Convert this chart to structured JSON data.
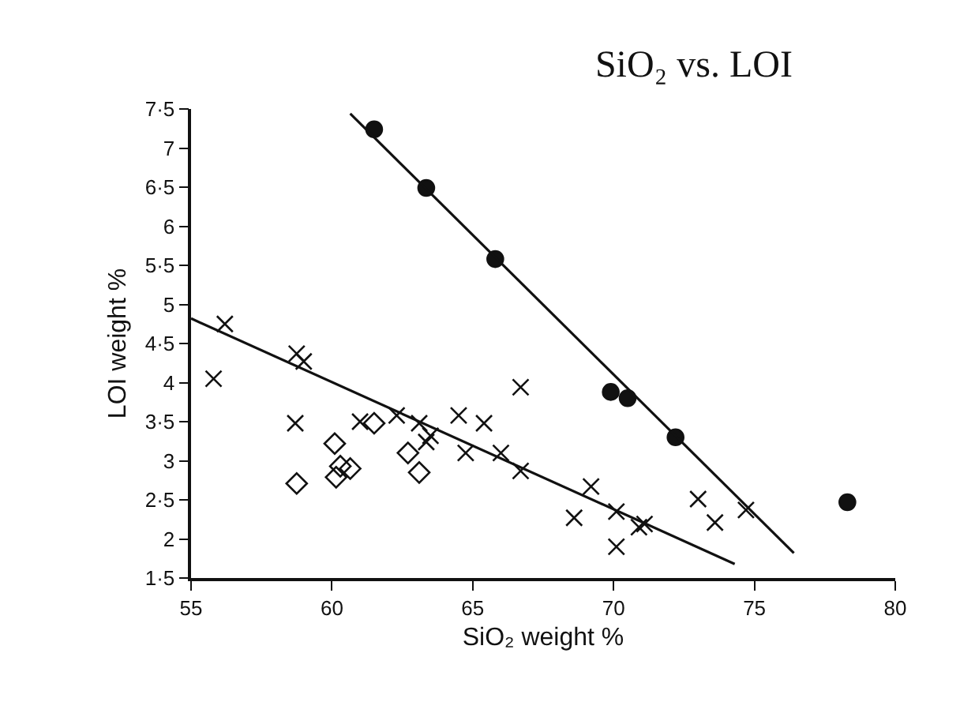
{
  "chart_data": {
    "type": "scatter",
    "title": "SiO₂ vs. LOI",
    "xlabel": "SiO₂ weight %",
    "ylabel": "LOI weight %",
    "xlim": [
      55,
      80
    ],
    "xticks": [
      55,
      60,
      65,
      70,
      75,
      80
    ],
    "ylim": [
      1.5,
      7.5
    ],
    "yticks": [
      {
        "value": 1.5,
        "label": "1·5"
      },
      2,
      {
        "value": 2.5,
        "label": "2·5"
      },
      3,
      {
        "value": 3.5,
        "label": "3·5"
      },
      4,
      {
        "value": 4.5,
        "label": "4·5"
      },
      5,
      {
        "value": 5.5,
        "label": "5·5"
      },
      6,
      {
        "value": 6.5,
        "label": "6·5"
      },
      7,
      {
        "value": 7.5,
        "label": "7·5"
      }
    ],
    "grid": false,
    "series": [
      {
        "marker": "circle",
        "color": "#111111",
        "x": [
          61.5,
          63.35,
          65.8,
          69.9,
          70.5,
          72.2,
          78.3
        ],
        "values": [
          7.24,
          6.49,
          5.58,
          3.88,
          3.8,
          3.3,
          2.47
        ]
      },
      {
        "marker": "cross",
        "color": "#111111",
        "x": [
          55.8,
          56.2,
          58.75,
          59.0,
          58.7,
          61.0,
          62.3,
          63.1,
          63.35,
          63.5,
          64.5,
          64.75,
          65.4,
          66.0,
          66.7,
          66.7,
          69.2,
          68.6,
          70.1,
          70.1,
          70.9,
          71.1,
          73.0,
          73.6,
          74.7
        ],
        "values": [
          4.05,
          4.75,
          4.37,
          4.27,
          3.48,
          3.5,
          3.58,
          3.48,
          3.24,
          3.32,
          3.58,
          3.1,
          3.48,
          3.1,
          3.94,
          2.87,
          2.67,
          2.27,
          2.35,
          1.9,
          2.15,
          2.19,
          2.51,
          2.21,
          2.37
        ]
      },
      {
        "marker": "diamond",
        "color": "#111111",
        "x": [
          58.75,
          60.1,
          60.15,
          60.3,
          60.65,
          61.5,
          62.7,
          63.1
        ],
        "values": [
          2.71,
          3.22,
          2.79,
          2.93,
          2.9,
          3.48,
          3.1,
          2.85
        ]
      },
      {
        "type": "line",
        "marker": "none",
        "line_style": "solid",
        "color": "#111111",
        "x": [
          60.65,
          76.4
        ],
        "values": [
          7.44,
          1.82
        ]
      },
      {
        "type": "line",
        "marker": "none",
        "line_style": "solid",
        "color": "#111111",
        "x": [
          55,
          74.3
        ],
        "values": [
          4.82,
          1.68
        ]
      }
    ]
  }
}
